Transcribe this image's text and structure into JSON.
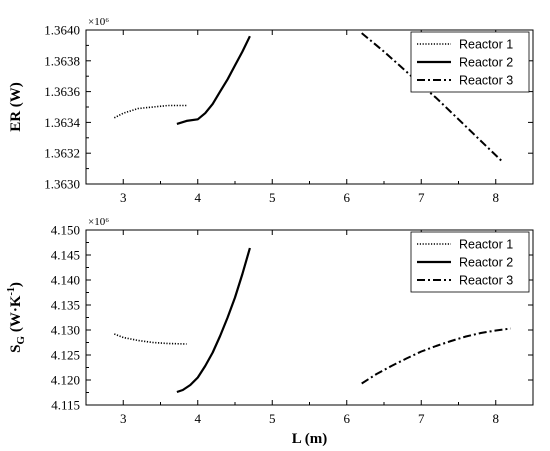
{
  "chart_data": [
    {
      "type": "line",
      "ylabel": "ER (W)",
      "xlabel": "",
      "multiplier": "×10⁶",
      "xlim": [
        2.5,
        8.5
      ],
      "ylim": [
        1.363,
        1.364
      ],
      "xticks": [
        "3",
        "4",
        "5",
        "6",
        "7",
        "8"
      ],
      "yticks": [
        "1.3630",
        "1.3632",
        "1.3634",
        "1.3636",
        "1.3638",
        "1.3640"
      ],
      "legend_position": "top-right",
      "series": [
        {
          "name": "Reactor 1",
          "style": "dotted",
          "x": [
            2.88,
            3.0,
            3.2,
            3.4,
            3.6,
            3.85
          ],
          "y": [
            1.36343,
            1.36346,
            1.36349,
            1.3635,
            1.36351,
            1.36351
          ]
        },
        {
          "name": "Reactor 2",
          "style": "solid",
          "x": [
            3.72,
            3.85,
            4.0,
            4.1,
            4.2,
            4.3,
            4.4,
            4.5,
            4.6,
            4.7
          ],
          "y": [
            1.36339,
            1.36341,
            1.36342,
            1.36346,
            1.36352,
            1.3636,
            1.36368,
            1.36377,
            1.36386,
            1.36396
          ]
        },
        {
          "name": "Reactor 3",
          "style": "dashdot",
          "x": [
            6.2,
            6.5,
            6.8,
            7.0,
            7.2,
            7.5,
            7.8,
            8.1
          ],
          "y": [
            1.36398,
            1.36386,
            1.36373,
            1.36364,
            1.36356,
            1.36342,
            1.36328,
            1.36314
          ]
        }
      ]
    },
    {
      "type": "line",
      "ylabel": "SG (W·K-1)",
      "ylabel_main": "S",
      "ylabel_sub": "G",
      "ylabel_rest": " (W·K",
      "ylabel_sup": "-1",
      "ylabel_end": ")",
      "xlabel": "L (m)",
      "multiplier": "×10⁶",
      "xlim": [
        2.5,
        8.5
      ],
      "ylim": [
        4.115,
        4.15
      ],
      "xticks": [
        "3",
        "4",
        "5",
        "6",
        "7",
        "8"
      ],
      "yticks": [
        "4.115",
        "4.120",
        "4.125",
        "4.130",
        "4.135",
        "4.140",
        "4.145",
        "4.150"
      ],
      "legend_position": "top-right",
      "series": [
        {
          "name": "Reactor 1",
          "style": "dotted",
          "x": [
            2.88,
            3.0,
            3.2,
            3.4,
            3.6,
            3.85
          ],
          "y": [
            4.1292,
            4.1285,
            4.1279,
            4.1275,
            4.1273,
            4.1272
          ]
        },
        {
          "name": "Reactor 2",
          "style": "solid",
          "x": [
            3.72,
            3.8,
            3.9,
            4.0,
            4.1,
            4.2,
            4.3,
            4.4,
            4.5,
            4.6,
            4.7
          ],
          "y": [
            4.1176,
            4.118,
            4.119,
            4.1205,
            4.1228,
            4.1255,
            4.1288,
            4.1325,
            4.1365,
            4.1412,
            4.1464
          ]
        },
        {
          "name": "Reactor 3",
          "style": "dashdot",
          "x": [
            6.2,
            6.4,
            6.6,
            6.8,
            7.0,
            7.2,
            7.4,
            7.6,
            7.8,
            8.0,
            8.2
          ],
          "y": [
            4.1193,
            4.1212,
            4.1228,
            4.1243,
            4.1257,
            4.1268,
            4.1278,
            4.1287,
            4.1294,
            4.1299,
            4.1303
          ]
        }
      ]
    }
  ]
}
